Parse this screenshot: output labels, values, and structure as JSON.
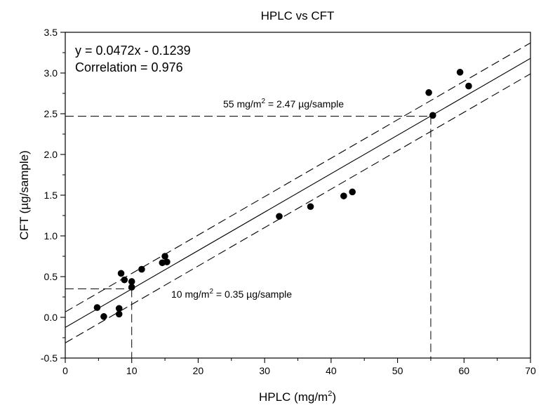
{
  "chart_data": {
    "type": "scatter",
    "title": "HPLC vs CFT",
    "xlabel_main": "HPLC (mg/m",
    "xlabel_sup": "2",
    "xlabel_end": ")",
    "ylabel": "CFT (µg/sample)",
    "xlim": [
      0,
      70
    ],
    "ylim": [
      -0.5,
      3.5
    ],
    "x_ticks": [
      0,
      10,
      20,
      30,
      40,
      50,
      60,
      70
    ],
    "y_ticks": [
      -0.5,
      0.0,
      0.5,
      1.0,
      1.5,
      2.0,
      2.5,
      3.0,
      3.5
    ],
    "x_tick_labels": [
      "0",
      "10",
      "20",
      "30",
      "40",
      "50",
      "60",
      "70"
    ],
    "y_tick_labels": [
      "-0.5",
      "0.0",
      "0.5",
      "1.0",
      "1.5",
      "2.0",
      "2.5",
      "3.0",
      "3.5"
    ],
    "grid": false,
    "points": [
      {
        "x": 4.8,
        "y": 0.12
      },
      {
        "x": 5.8,
        "y": 0.01
      },
      {
        "x": 8.1,
        "y": 0.04
      },
      {
        "x": 8.1,
        "y": 0.11
      },
      {
        "x": 8.4,
        "y": 0.54
      },
      {
        "x": 8.9,
        "y": 0.46
      },
      {
        "x": 10.0,
        "y": 0.44
      },
      {
        "x": 10.0,
        "y": 0.37
      },
      {
        "x": 11.5,
        "y": 0.59
      },
      {
        "x": 14.6,
        "y": 0.67
      },
      {
        "x": 15.0,
        "y": 0.75
      },
      {
        "x": 15.3,
        "y": 0.68
      },
      {
        "x": 32.2,
        "y": 1.24
      },
      {
        "x": 36.9,
        "y": 1.36
      },
      {
        "x": 41.9,
        "y": 1.49
      },
      {
        "x": 43.2,
        "y": 1.54
      },
      {
        "x": 54.7,
        "y": 2.76
      },
      {
        "x": 55.3,
        "y": 2.48
      },
      {
        "x": 59.4,
        "y": 3.01
      },
      {
        "x": 60.7,
        "y": 2.84
      }
    ],
    "fit": {
      "slope": 0.0472,
      "intercept": -0.1239
    },
    "confidence_band": {
      "offset": 0.19
    },
    "equation_line1": "y = 0.0472x - 0.1239",
    "equation_line2": "Correlation = 0.976",
    "reference_markers": [
      {
        "x": 10,
        "y": 0.35,
        "label_pre": "10 mg/m",
        "label_sup": "2",
        "label_post": " = 0.35 µg/sample"
      },
      {
        "x": 55,
        "y": 2.47,
        "label_pre": "55 mg/m",
        "label_sup": "2",
        "label_post": " = 2.47 µg/sample"
      }
    ],
    "colors": {
      "points": "#000000",
      "lines": "#000000",
      "background": "#ffffff"
    }
  }
}
